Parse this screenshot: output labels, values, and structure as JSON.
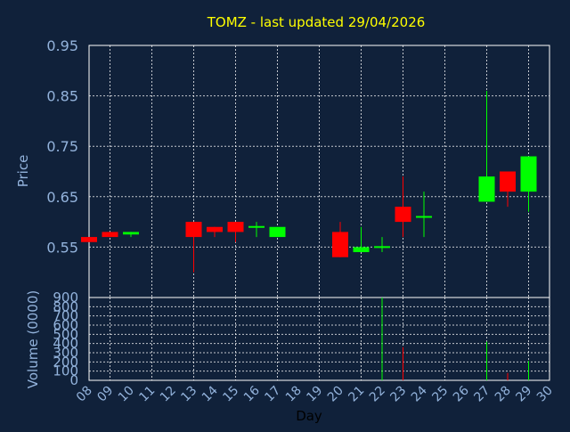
{
  "chart_data": {
    "type": "candlestick",
    "title": "TOMZ - last updated 29/04/2026",
    "ylabel": "Price",
    "volume_label": "Volume (0000)",
    "xlabel": "Day",
    "ylim": [
      0.45,
      0.95
    ],
    "volume_ylim": [
      0,
      900
    ],
    "y_ticks": [
      "0.95",
      "0.85",
      "0.75",
      "0.65",
      "0.55"
    ],
    "volume_ticks": [
      "900",
      "800",
      "700",
      "600",
      "500",
      "400",
      "300",
      "200",
      "100",
      "0"
    ],
    "x_ticks": [
      "08",
      "09",
      "10",
      "11",
      "12",
      "13",
      "14",
      "15",
      "16",
      "17",
      "18",
      "19",
      "20",
      "21",
      "22",
      "23",
      "24",
      "25",
      "26",
      "27",
      "28",
      "29",
      "30"
    ],
    "up_color": "#00ff00",
    "down_color": "#ff0000",
    "grid": true,
    "candles": [
      {
        "day": "08",
        "open": 0.57,
        "high": 0.57,
        "low": 0.56,
        "close": 0.56,
        "volume": 0
      },
      {
        "day": "09",
        "open": 0.58,
        "high": 0.58,
        "low": 0.57,
        "close": 0.57,
        "volume": 0
      },
      {
        "day": "10",
        "open": 0.575,
        "high": 0.58,
        "low": 0.57,
        "close": 0.58,
        "volume": 0
      },
      {
        "day": "13",
        "open": 0.6,
        "high": 0.6,
        "low": 0.5,
        "close": 0.57,
        "volume": 0
      },
      {
        "day": "14",
        "open": 0.59,
        "high": 0.59,
        "low": 0.57,
        "close": 0.58,
        "volume": 0
      },
      {
        "day": "15",
        "open": 0.6,
        "high": 0.6,
        "low": 0.56,
        "close": 0.58,
        "volume": 0
      },
      {
        "day": "16",
        "open": 0.59,
        "high": 0.6,
        "low": 0.57,
        "close": 0.59,
        "volume": 0
      },
      {
        "day": "17",
        "open": 0.57,
        "high": 0.59,
        "low": 0.57,
        "close": 0.59,
        "volume": 0
      },
      {
        "day": "20",
        "open": 0.58,
        "high": 0.6,
        "low": 0.53,
        "close": 0.53,
        "volume": 0
      },
      {
        "day": "21",
        "open": 0.54,
        "high": 0.59,
        "low": 0.54,
        "close": 0.55,
        "volume": 0
      },
      {
        "day": "22",
        "open": 0.55,
        "high": 0.57,
        "low": 0.54,
        "close": 0.55,
        "volume": 900
      },
      {
        "day": "23",
        "open": 0.63,
        "high": 0.69,
        "low": 0.57,
        "close": 0.6,
        "volume": 360
      },
      {
        "day": "24",
        "open": 0.61,
        "high": 0.66,
        "low": 0.57,
        "close": 0.61,
        "volume": 0
      },
      {
        "day": "27",
        "open": 0.64,
        "high": 0.86,
        "low": 0.64,
        "close": 0.69,
        "volume": 420
      },
      {
        "day": "28",
        "open": 0.7,
        "high": 0.7,
        "low": 0.63,
        "close": 0.66,
        "volume": 80
      },
      {
        "day": "29",
        "open": 0.66,
        "high": 0.73,
        "low": 0.62,
        "close": 0.73,
        "volume": 210
      }
    ]
  }
}
